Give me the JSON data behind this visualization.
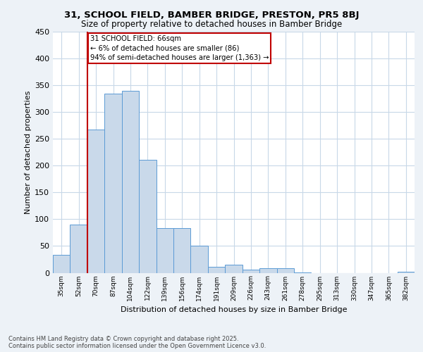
{
  "title1": "31, SCHOOL FIELD, BAMBER BRIDGE, PRESTON, PR5 8BJ",
  "title2": "Size of property relative to detached houses in Bamber Bridge",
  "xlabel": "Distribution of detached houses by size in Bamber Bridge",
  "ylabel": "Number of detached properties",
  "categories": [
    "35sqm",
    "52sqm",
    "70sqm",
    "87sqm",
    "104sqm",
    "122sqm",
    "139sqm",
    "156sqm",
    "174sqm",
    "191sqm",
    "209sqm",
    "226sqm",
    "243sqm",
    "261sqm",
    "278sqm",
    "295sqm",
    "313sqm",
    "330sqm",
    "347sqm",
    "365sqm",
    "382sqm"
  ],
  "values": [
    34,
    90,
    268,
    335,
    340,
    211,
    83,
    83,
    51,
    11,
    15,
    6,
    8,
    8,
    1,
    0,
    0,
    0,
    0,
    0,
    2
  ],
  "bar_color": "#c9d9ea",
  "bar_edge_color": "#5b9bd5",
  "vline_color": "#c00000",
  "annotation_text": "31 SCHOOL FIELD: 66sqm\n← 6% of detached houses are smaller (86)\n94% of semi-detached houses are larger (1,363) →",
  "annotation_box_color": "#ffffff",
  "annotation_box_edge_color": "#c00000",
  "ylim": [
    0,
    450
  ],
  "yticks": [
    0,
    50,
    100,
    150,
    200,
    250,
    300,
    350,
    400,
    450
  ],
  "footer": "Contains HM Land Registry data © Crown copyright and database right 2025.\nContains public sector information licensed under the Open Government Licence v3.0.",
  "bg_color": "#edf2f7",
  "plot_bg_color": "#ffffff",
  "grid_color": "#c8d8e8"
}
